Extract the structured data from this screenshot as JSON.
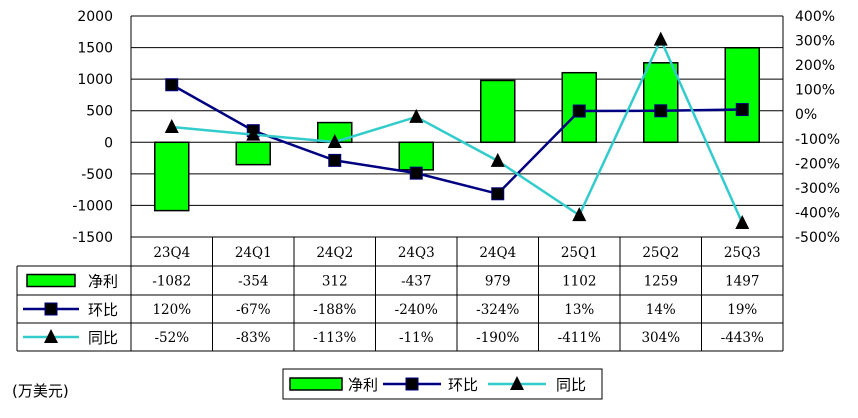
{
  "unit_label": "(万美元)",
  "chart_data": {
    "type": "bar",
    "categories": [
      "23Q4",
      "24Q1",
      "24Q2",
      "24Q3",
      "24Q4",
      "25Q1",
      "25Q2",
      "25Q3"
    ],
    "series": [
      {
        "name": "净利",
        "kind": "bar",
        "axis": "left",
        "color": "#00ff00",
        "values": [
          -1082,
          -354,
          312,
          -437,
          979,
          1102,
          1259,
          1497
        ],
        "labels": [
          "-1082",
          "-354",
          "312",
          "-437",
          "979",
          "1102",
          "1259",
          "1497"
        ]
      },
      {
        "name": "环比",
        "kind": "line",
        "axis": "right",
        "color": "#000080",
        "marker": "square",
        "values": [
          120,
          -67,
          -188,
          -240,
          -324,
          13,
          14,
          19
        ],
        "labels": [
          "120%",
          "-67%",
          "-188%",
          "-240%",
          "-324%",
          "13%",
          "14%",
          "19%"
        ]
      },
      {
        "name": "同比",
        "kind": "line",
        "axis": "right",
        "color": "#33cccc",
        "marker": "triangle",
        "values": [
          -52,
          -83,
          -113,
          -11,
          -190,
          -411,
          304,
          -443
        ],
        "labels": [
          "-52%",
          "-83%",
          "-113%",
          "-11%",
          "-190%",
          "-411%",
          "304%",
          "-443%"
        ]
      }
    ],
    "y_left": {
      "min": -1500,
      "max": 2000,
      "step": 500,
      "ticks": [
        "2000",
        "1500",
        "1000",
        "500",
        "0",
        "-500",
        "-1000",
        "-1500"
      ]
    },
    "y_right": {
      "min": -500,
      "max": 400,
      "step": 100,
      "ticks": [
        "400%",
        "300%",
        "200%",
        "100%",
        "0%",
        "-100%",
        "-200%",
        "-300%",
        "-400%",
        "-500%"
      ]
    },
    "grid": true,
    "legend_position": "bottom",
    "data_table": true
  }
}
